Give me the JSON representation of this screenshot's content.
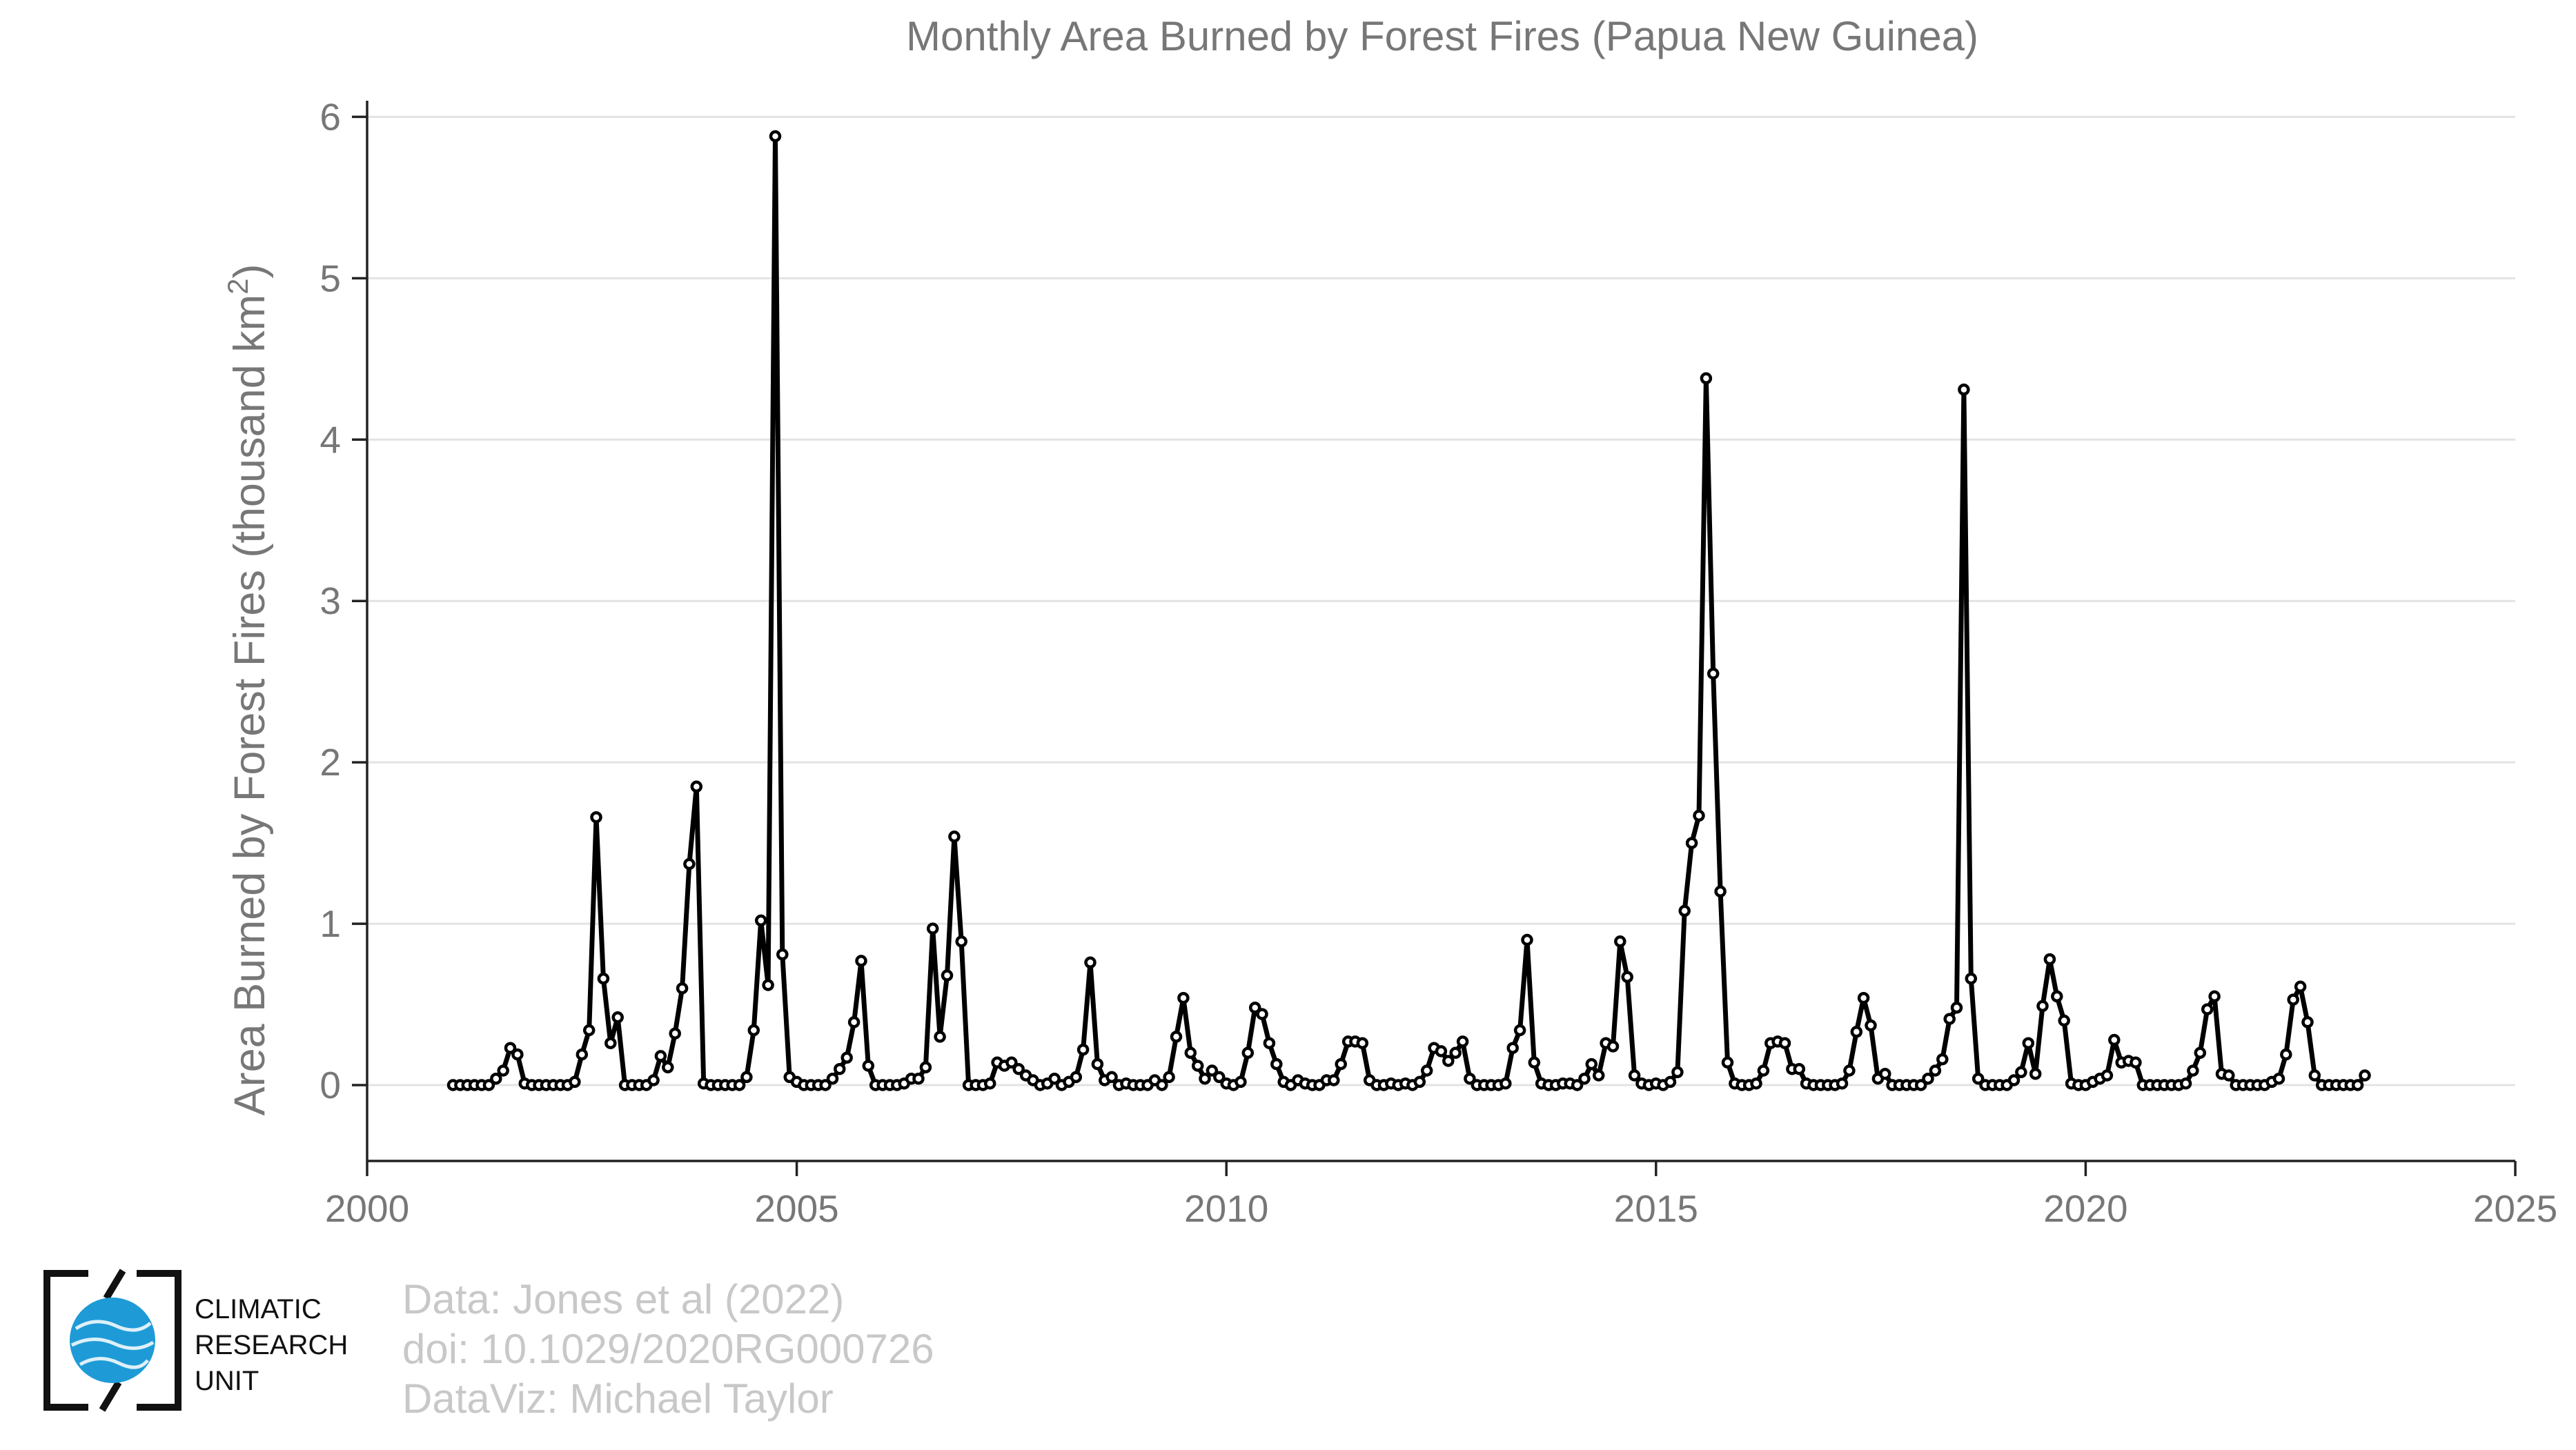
{
  "chart_data": {
    "type": "line",
    "title": "Monthly Area Burned by Forest Fires (Papua New Guinea)",
    "ylabel": "Area Burned by Forest Fires (thousand km",
    "ylabel_superscript": "2",
    "ylabel_close": ")",
    "xlabel": "",
    "xlim": [
      2000,
      2025
    ],
    "ylim": [
      -0.47,
      6.1
    ],
    "x_ticks": [
      2000,
      2005,
      2010,
      2015,
      2020,
      2025
    ],
    "y_ticks": [
      0,
      1,
      2,
      3,
      4,
      5,
      6
    ],
    "grid": "horizontal",
    "x_start": 2001.0,
    "x_step": 0.08333,
    "series": [
      {
        "name": "",
        "color": "#000000",
        "values": [
          0,
          0,
          0,
          0,
          0,
          0,
          0.04,
          0.09,
          0.23,
          0.19,
          0.01,
          0,
          0,
          0,
          0,
          0,
          0,
          0.02,
          0.19,
          0.34,
          1.66,
          0.66,
          0.26,
          0.42,
          0,
          0,
          0,
          0,
          0.03,
          0.18,
          0.11,
          0.32,
          0.6,
          1.37,
          1.85,
          0.01,
          0,
          0,
          0,
          0,
          0,
          0.05,
          0.34,
          1.02,
          0.62,
          5.88,
          0.81,
          0.05,
          0.02,
          0,
          0,
          0,
          0,
          0.04,
          0.1,
          0.17,
          0.39,
          0.77,
          0.12,
          0,
          0,
          0,
          0,
          0.01,
          0.04,
          0.04,
          0.11,
          0.97,
          0.3,
          0.68,
          1.54,
          0.89,
          0,
          0,
          0,
          0.01,
          0.14,
          0.12,
          0.14,
          0.1,
          0.06,
          0.03,
          0,
          0.01,
          0.04,
          0,
          0.02,
          0.05,
          0.22,
          0.76,
          0.13,
          0.03,
          0.05,
          0,
          0.01,
          0,
          0,
          0,
          0.03,
          0,
          0.05,
          0.3,
          0.54,
          0.2,
          0.12,
          0.04,
          0.09,
          0.05,
          0.01,
          0,
          0.02,
          0.2,
          0.48,
          0.44,
          0.26,
          0.13,
          0.02,
          0,
          0.03,
          0.01,
          0,
          0,
          0.03,
          0.03,
          0.13,
          0.27,
          0.27,
          0.26,
          0.03,
          0,
          0,
          0.01,
          0,
          0.01,
          0,
          0.02,
          0.09,
          0.23,
          0.21,
          0.15,
          0.2,
          0.27,
          0.04,
          0,
          0,
          0,
          0,
          0.01,
          0.23,
          0.34,
          0.9,
          0.14,
          0.01,
          0,
          0,
          0.01,
          0.01,
          0,
          0.04,
          0.13,
          0.06,
          0.26,
          0.24,
          0.89,
          0.67,
          0.06,
          0.01,
          0,
          0.01,
          0,
          0.02,
          0.08,
          1.08,
          1.5,
          1.67,
          4.38,
          2.55,
          1.2,
          0.14,
          0.01,
          0,
          0,
          0.01,
          0.09,
          0.26,
          0.27,
          0.26,
          0.1,
          0.1,
          0.01,
          0,
          0,
          0,
          0,
          0.01,
          0.09,
          0.33,
          0.54,
          0.37,
          0.04,
          0.07,
          0,
          0,
          0,
          0,
          0,
          0.04,
          0.09,
          0.16,
          0.41,
          0.48,
          4.31,
          0.66,
          0.04,
          0,
          0,
          0,
          0,
          0.03,
          0.08,
          0.26,
          0.07,
          0.49,
          0.78,
          0.55,
          0.4,
          0.01,
          0,
          0,
          0.02,
          0.04,
          0.06,
          0.28,
          0.14,
          0.15,
          0.14,
          0,
          0,
          0,
          0,
          0,
          0,
          0.01,
          0.09,
          0.2,
          0.47,
          0.55,
          0.07,
          0.06,
          0,
          0,
          0,
          0,
          0,
          0.02,
          0.04,
          0.19,
          0.53,
          0.61,
          0.39,
          0.06,
          0,
          0,
          0,
          0,
          0,
          0,
          0.06
        ]
      }
    ]
  },
  "footer": {
    "credits": [
      "Data: Jones et al (2022)",
      "doi: 10.1029/2020RG000726",
      "DataViz: Michael Taylor"
    ],
    "logo_lines": [
      "CLIMATIC",
      "RESEARCH",
      "UNIT"
    ],
    "logo_icon": "globe-icon",
    "logo_color": "#1e9bd7"
  }
}
